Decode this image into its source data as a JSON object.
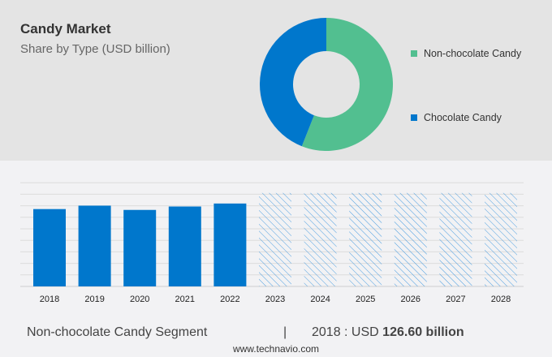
{
  "header": {
    "title": "Candy Market",
    "subtitle": "Share by Type (USD billion)"
  },
  "colors": {
    "non_chocolate": "#52bf90",
    "chocolate": "#0077cc",
    "forecast_hatch": "#4a9de0"
  },
  "chart_data": [
    {
      "type": "pie",
      "donut": true,
      "legend_position": "right",
      "slices": [
        {
          "name": "Non-chocolate Candy",
          "value": 56
        },
        {
          "name": "Chocolate Candy",
          "value": 44
        }
      ]
    },
    {
      "type": "bar",
      "categories": [
        "2018",
        "2019",
        "2020",
        "2021",
        "2022",
        "2023",
        "2024",
        "2025",
        "2026",
        "2027",
        "2028"
      ],
      "values": [
        126.6,
        132.2,
        125.2,
        130.8,
        135.7,
        null,
        null,
        null,
        null,
        null,
        null
      ],
      "forecast_categories": [
        "2023",
        "2024",
        "2025",
        "2026",
        "2027",
        "2028"
      ],
      "forecast_style": "hatched",
      "ylim": [
        0,
        170
      ],
      "grid": true,
      "y_tick_labels": false,
      "xlabel": "",
      "ylabel": ""
    }
  ],
  "footer": {
    "segment": "Non-chocolate Candy Segment",
    "separator": "|",
    "year_label": "2018 : USD",
    "value": "126.60 billion",
    "source": "www.technavio.com"
  }
}
